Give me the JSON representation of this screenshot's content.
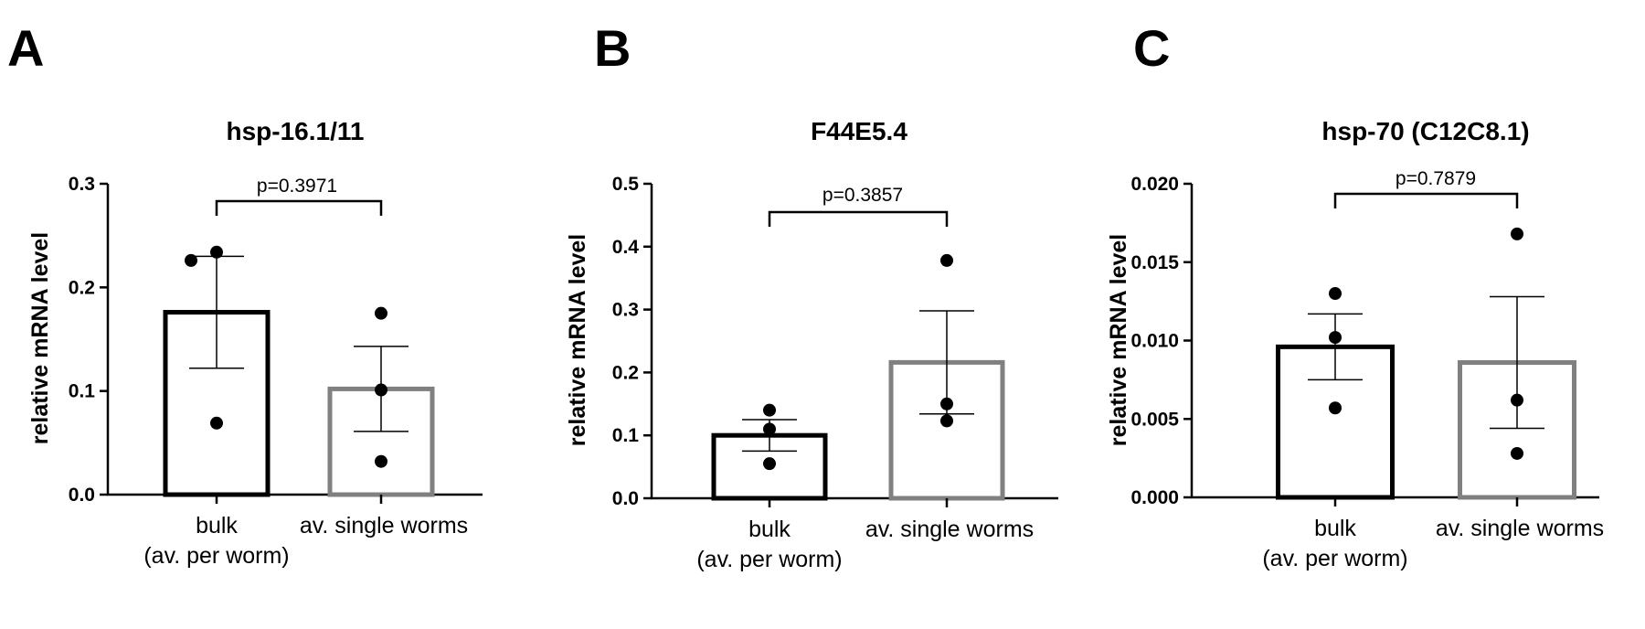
{
  "chart_data": [
    {
      "type": "bar",
      "panel": "A",
      "title": "hsp-16.1/11",
      "ylabel": "relative mRNA level",
      "xlabel": "",
      "ylim": [
        0,
        0.3
      ],
      "yticks": [
        0.0,
        0.1,
        0.2,
        0.3
      ],
      "ytick_labels": [
        "0.0",
        "0.1",
        "0.2",
        "0.3"
      ],
      "categories": [
        [
          "bulk",
          "(av. per worm)"
        ],
        [
          "av. single worms"
        ]
      ],
      "values": [
        0.176,
        0.102
      ],
      "sem": [
        0.054,
        0.041
      ],
      "points": [
        [
          0.226,
          0.234,
          0.069
        ],
        [
          0.175,
          0.101,
          0.032
        ]
      ],
      "p_value": "p=0.3971",
      "bar_colors": [
        "#000000",
        "#808080"
      ]
    },
    {
      "type": "bar",
      "panel": "B",
      "title": "F44E5.4",
      "ylabel": "relative mRNA level",
      "xlabel": "",
      "ylim": [
        0,
        0.5
      ],
      "yticks": [
        0.0,
        0.1,
        0.2,
        0.3,
        0.4,
        0.5
      ],
      "ytick_labels": [
        "0.0",
        "0.1",
        "0.2",
        "0.3",
        "0.4",
        "0.5"
      ],
      "categories": [
        [
          "bulk",
          "(av. per worm)"
        ],
        [
          "av. single worms"
        ]
      ],
      "values": [
        0.1,
        0.216
      ],
      "sem": [
        0.025,
        0.082
      ],
      "points": [
        [
          0.14,
          0.11,
          0.055
        ],
        [
          0.378,
          0.15,
          0.123
        ]
      ],
      "p_value": "p=0.3857",
      "bar_colors": [
        "#000000",
        "#808080"
      ]
    },
    {
      "type": "bar",
      "panel": "C",
      "title": "hsp-70 (C12C8.1)",
      "ylabel": "relative mRNA level",
      "xlabel": "",
      "ylim": [
        0,
        0.02
      ],
      "yticks": [
        0.0,
        0.005,
        0.01,
        0.015,
        0.02
      ],
      "ytick_labels": [
        "0.000",
        "0.005",
        "0.010",
        "0.015",
        "0.020"
      ],
      "categories": [
        [
          "bulk",
          "(av. per worm)"
        ],
        [
          "av. single worms"
        ]
      ],
      "values": [
        0.0096,
        0.0086
      ],
      "sem": [
        0.0021,
        0.0042
      ],
      "points": [
        [
          0.013,
          0.0102,
          0.0057
        ],
        [
          0.0168,
          0.0062,
          0.0028
        ]
      ],
      "p_value": "p=0.7879",
      "bar_colors": [
        "#000000",
        "#808080"
      ]
    }
  ]
}
